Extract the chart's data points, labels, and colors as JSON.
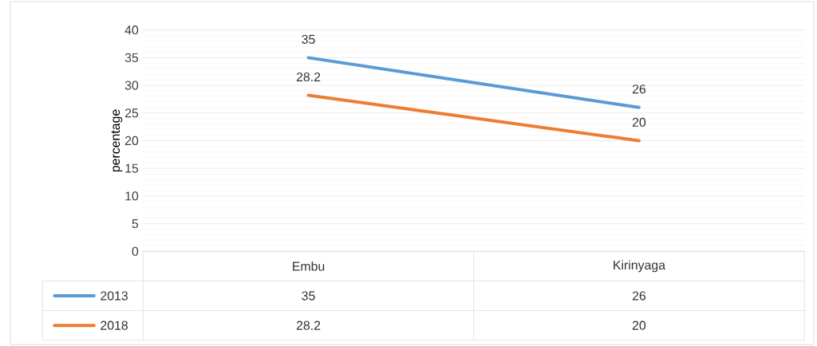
{
  "chart_data": {
    "type": "line",
    "ylabel": "percentage",
    "categories": [
      "Embu",
      "Kirinyaga"
    ],
    "series": [
      {
        "name": "2013",
        "color": "#5b9bd5",
        "values": [
          35,
          26
        ],
        "value_labels": [
          "35",
          "26"
        ]
      },
      {
        "name": "2018",
        "color": "#ed7d31",
        "values": [
          28.2,
          20
        ],
        "value_labels": [
          "28.2",
          "20"
        ]
      }
    ],
    "ylim": [
      0,
      40
    ],
    "yticks": [
      0,
      5,
      10,
      15,
      20,
      25,
      30,
      35,
      40
    ],
    "grid": "y",
    "legend": "bottom",
    "data_labels": true,
    "marker": "none",
    "line_style": "solid"
  }
}
